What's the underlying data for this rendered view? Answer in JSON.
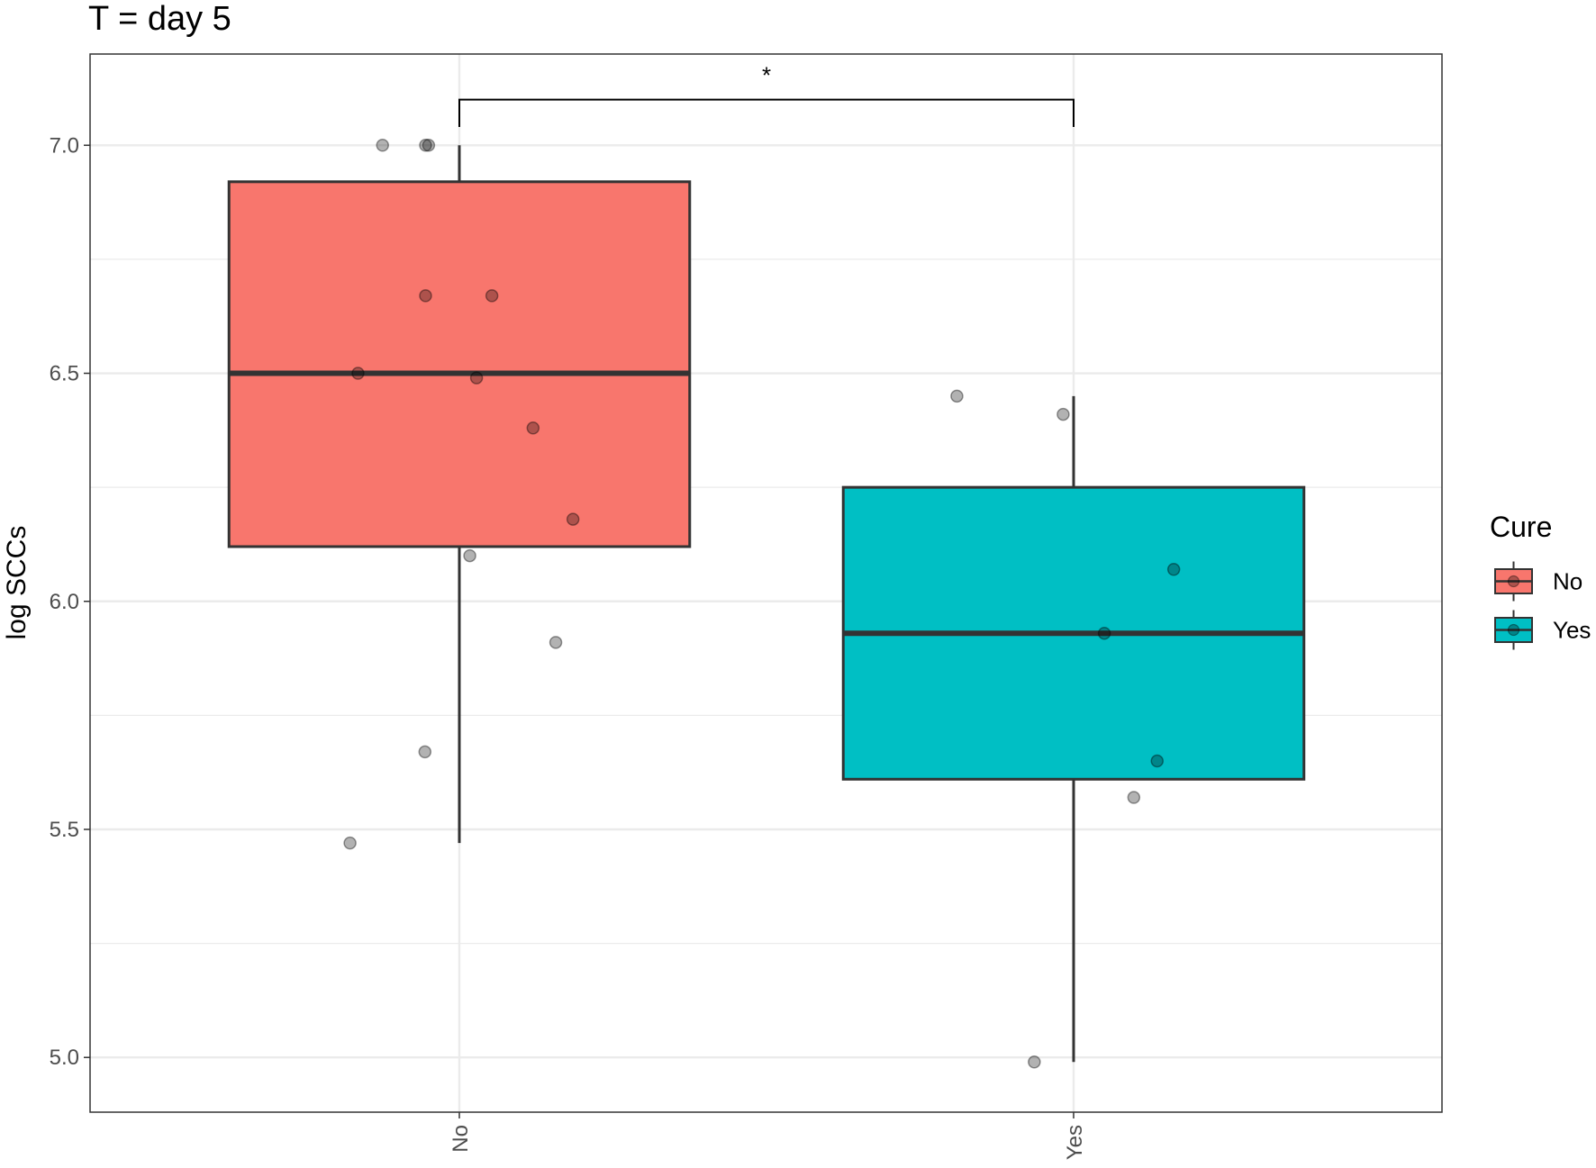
{
  "chart_data": {
    "type": "box",
    "title": "T = day 5",
    "xlabel": "",
    "ylabel": "log SCCs",
    "ylim": [
      4.88,
      7.2
    ],
    "yticks": [
      "5.0",
      "5.5",
      "6.0",
      "6.5",
      "7.0"
    ],
    "ytick_values": [
      5.0,
      5.5,
      6.0,
      6.5,
      7.0
    ],
    "categories": [
      "No",
      "Yes"
    ],
    "grid": true,
    "legend": {
      "title": "Cure",
      "placement": "right",
      "items": [
        {
          "label": "No",
          "color": "#F8766D"
        },
        {
          "label": "Yes",
          "color": "#00BFC4"
        }
      ]
    },
    "boxes": [
      {
        "category": "No",
        "color": "#F8766D",
        "min": 5.47,
        "q1": 6.12,
        "median": 6.5,
        "q3": 6.92,
        "max": 7.0
      },
      {
        "category": "Yes",
        "color": "#00BFC4",
        "min": 4.99,
        "q1": 5.61,
        "median": 5.93,
        "q3": 6.25,
        "max": 6.45
      }
    ],
    "points": [
      {
        "category": "No",
        "jitter": -0.125,
        "y": 7.0
      },
      {
        "category": "No",
        "jitter": -0.055,
        "y": 7.0
      },
      {
        "category": "No",
        "jitter": -0.05,
        "y": 7.0
      },
      {
        "category": "No",
        "jitter": -0.055,
        "y": 6.67
      },
      {
        "category": "No",
        "jitter": 0.053,
        "y": 6.67
      },
      {
        "category": "No",
        "jitter": -0.165,
        "y": 6.5
      },
      {
        "category": "No",
        "jitter": 0.028,
        "y": 6.49
      },
      {
        "category": "No",
        "jitter": 0.12,
        "y": 6.38
      },
      {
        "category": "No",
        "jitter": 0.185,
        "y": 6.18
      },
      {
        "category": "No",
        "jitter": 0.017,
        "y": 6.1
      },
      {
        "category": "No",
        "jitter": 0.157,
        "y": 5.91
      },
      {
        "category": "No",
        "jitter": -0.056,
        "y": 5.67
      },
      {
        "category": "No",
        "jitter": -0.178,
        "y": 5.47
      },
      {
        "category": "Yes",
        "jitter": -0.19,
        "y": 6.45
      },
      {
        "category": "Yes",
        "jitter": -0.017,
        "y": 6.41
      },
      {
        "category": "Yes",
        "jitter": 0.163,
        "y": 6.07
      },
      {
        "category": "Yes",
        "jitter": 0.05,
        "y": 5.93
      },
      {
        "category": "Yes",
        "jitter": 0.136,
        "y": 5.65
      },
      {
        "category": "Yes",
        "jitter": 0.098,
        "y": 5.57
      },
      {
        "category": "Yes",
        "jitter": -0.064,
        "y": 4.99
      }
    ],
    "annotations": [
      {
        "type": "significance-bracket",
        "from": "No",
        "to": "Yes",
        "label": "*",
        "y": 7.1,
        "tick_bottom": 7.04
      }
    ]
  }
}
